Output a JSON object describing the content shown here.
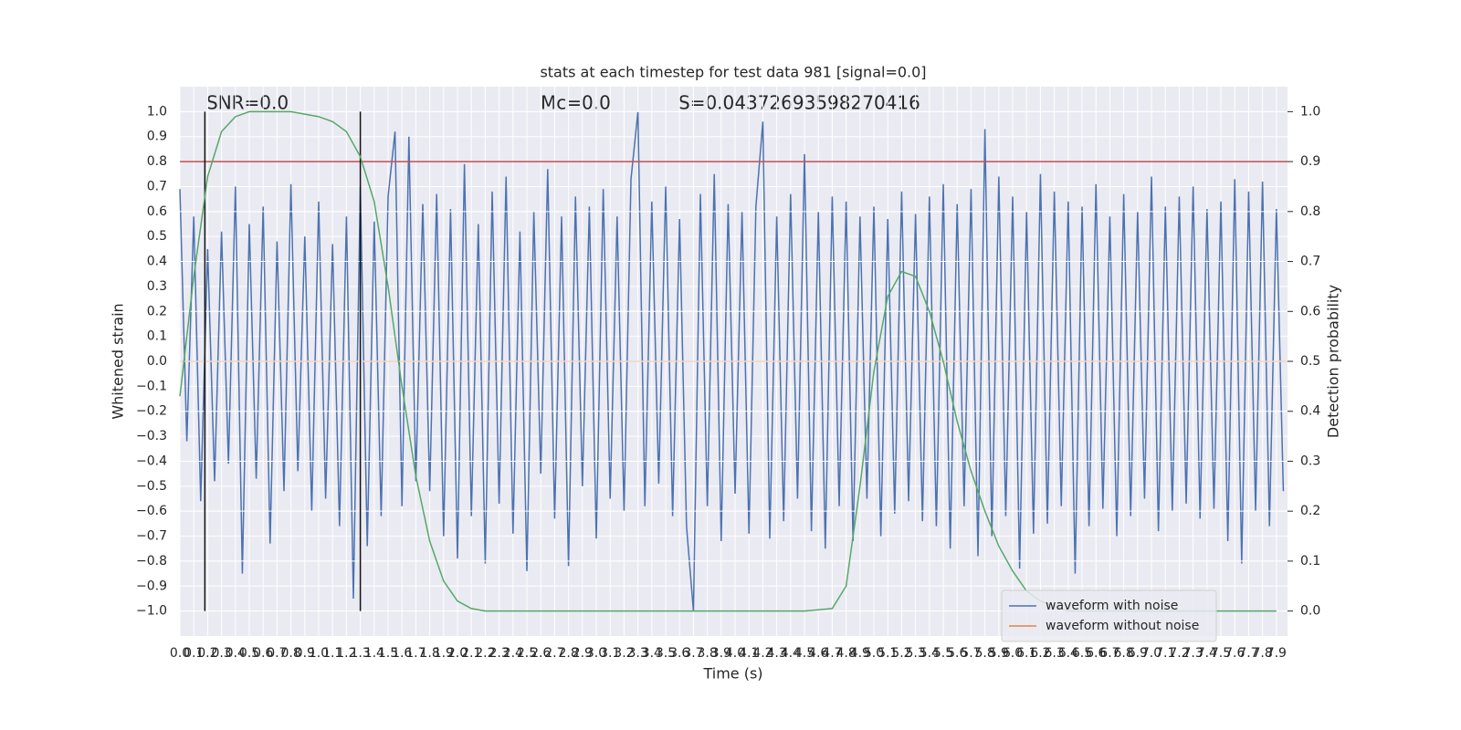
{
  "chart_data": {
    "type": "line",
    "title": "stats at each timestep for test data 981 [signal=0.0]",
    "x_label": "Time (s)",
    "y_label": "Whitened strain",
    "y2_label": "Detection probability",
    "annotations": [
      "SNR=0.0",
      "Mc=0.0",
      "S=0.04372693598270416"
    ],
    "grid": true,
    "legend": "lower right",
    "xlim": [
      0,
      7.98
    ],
    "ylim": [
      -1.1,
      1.1
    ],
    "y2lim": [
      -0.05,
      1.05
    ],
    "xticks": [
      {
        "value": 0,
        "label": "0.0"
      },
      {
        "value": 0.1,
        "label": "0.1"
      },
      {
        "value": 0.2,
        "label": "0.2"
      },
      {
        "value": 0.3,
        "label": "0.3"
      },
      {
        "value": 0.4,
        "label": "0.4"
      },
      {
        "value": 0.5,
        "label": "0.5"
      },
      {
        "value": 0.6,
        "label": "0.6"
      },
      {
        "value": 0.7,
        "label": "0.7"
      },
      {
        "value": 0.8,
        "label": "0.8"
      },
      {
        "value": 0.9,
        "label": "0.9"
      },
      {
        "value": 1,
        "label": "1.0"
      },
      {
        "value": 1.1,
        "label": "1.1"
      },
      {
        "value": 1.2,
        "label": "1.2"
      },
      {
        "value": 1.3,
        "label": "1.3"
      },
      {
        "value": 1.4,
        "label": "1.4"
      },
      {
        "value": 1.5,
        "label": "1.5"
      },
      {
        "value": 1.6,
        "label": "1.6"
      },
      {
        "value": 1.7,
        "label": "1.7"
      },
      {
        "value": 1.8,
        "label": "1.8"
      },
      {
        "value": 1.9,
        "label": "1.9"
      },
      {
        "value": 2,
        "label": "2.0"
      },
      {
        "value": 2.1,
        "label": "2.1"
      },
      {
        "value": 2.2,
        "label": "2.2"
      },
      {
        "value": 2.3,
        "label": "2.3"
      },
      {
        "value": 2.4,
        "label": "2.4"
      },
      {
        "value": 2.5,
        "label": "2.5"
      },
      {
        "value": 2.6,
        "label": "2.6"
      },
      {
        "value": 2.7,
        "label": "2.7"
      },
      {
        "value": 2.8,
        "label": "2.8"
      },
      {
        "value": 2.9,
        "label": "2.9"
      },
      {
        "value": 3,
        "label": "3.0"
      },
      {
        "value": 3.1,
        "label": "3.1"
      },
      {
        "value": 3.2,
        "label": "3.2"
      },
      {
        "value": 3.3,
        "label": "3.3"
      },
      {
        "value": 3.4,
        "label": "3.4"
      },
      {
        "value": 3.5,
        "label": "3.5"
      },
      {
        "value": 3.6,
        "label": "3.6"
      },
      {
        "value": 3.7,
        "label": "3.7"
      },
      {
        "value": 3.8,
        "label": "3.8"
      },
      {
        "value": 3.9,
        "label": "3.9"
      },
      {
        "value": 4,
        "label": "4.0"
      },
      {
        "value": 4.1,
        "label": "4.1"
      },
      {
        "value": 4.2,
        "label": "4.2"
      },
      {
        "value": 4.3,
        "label": "4.3"
      },
      {
        "value": 4.4,
        "label": "4.4"
      },
      {
        "value": 4.5,
        "label": "4.5"
      },
      {
        "value": 4.6,
        "label": "4.6"
      },
      {
        "value": 4.7,
        "label": "4.7"
      },
      {
        "value": 4.8,
        "label": "4.8"
      },
      {
        "value": 4.9,
        "label": "4.9"
      },
      {
        "value": 5,
        "label": "5.0"
      },
      {
        "value": 5.1,
        "label": "5.1"
      },
      {
        "value": 5.2,
        "label": "5.2"
      },
      {
        "value": 5.3,
        "label": "5.3"
      },
      {
        "value": 5.4,
        "label": "5.4"
      },
      {
        "value": 5.5,
        "label": "5.5"
      },
      {
        "value": 5.6,
        "label": "5.6"
      },
      {
        "value": 5.7,
        "label": "5.7"
      },
      {
        "value": 5.8,
        "label": "5.8"
      },
      {
        "value": 5.9,
        "label": "5.9"
      },
      {
        "value": 6,
        "label": "6.0"
      },
      {
        "value": 6.1,
        "label": "6.1"
      },
      {
        "value": 6.2,
        "label": "6.2"
      },
      {
        "value": 6.3,
        "label": "6.3"
      },
      {
        "value": 6.4,
        "label": "6.4"
      },
      {
        "value": 6.5,
        "label": "6.5"
      },
      {
        "value": 6.6,
        "label": "6.6"
      },
      {
        "value": 6.7,
        "label": "6.7"
      },
      {
        "value": 6.8,
        "label": "6.8"
      },
      {
        "value": 6.9,
        "label": "6.9"
      },
      {
        "value": 7,
        "label": "7.0"
      },
      {
        "value": 7.1,
        "label": "7.1"
      },
      {
        "value": 7.2,
        "label": "7.2"
      },
      {
        "value": 7.3,
        "label": "7.3"
      },
      {
        "value": 7.4,
        "label": "7.4"
      },
      {
        "value": 7.5,
        "label": "7.5"
      },
      {
        "value": 7.6,
        "label": "7.6"
      },
      {
        "value": 7.7,
        "label": "7.7"
      },
      {
        "value": 7.8,
        "label": "7.8"
      },
      {
        "value": 7.9,
        "label": "7.9"
      }
    ],
    "yticks": [
      {
        "value": -1,
        "label": "−1.0"
      },
      {
        "value": -0.9,
        "label": "−0.9"
      },
      {
        "value": -0.8,
        "label": "−0.8"
      },
      {
        "value": -0.7,
        "label": "−0.7"
      },
      {
        "value": -0.6,
        "label": "−0.6"
      },
      {
        "value": -0.5,
        "label": "−0.5"
      },
      {
        "value": -0.4,
        "label": "−0.4"
      },
      {
        "value": -0.3,
        "label": "−0.3"
      },
      {
        "value": -0.2,
        "label": "−0.2"
      },
      {
        "value": -0.1,
        "label": "−0.1"
      },
      {
        "value": 0,
        "label": "0.0"
      },
      {
        "value": 0.1,
        "label": "0.1"
      },
      {
        "value": 0.2,
        "label": "0.2"
      },
      {
        "value": 0.3,
        "label": "0.3"
      },
      {
        "value": 0.4,
        "label": "0.4"
      },
      {
        "value": 0.5,
        "label": "0.5"
      },
      {
        "value": 0.6,
        "label": "0.6"
      },
      {
        "value": 0.7,
        "label": "0.7"
      },
      {
        "value": 0.8,
        "label": "0.8"
      },
      {
        "value": 0.9,
        "label": "0.9"
      },
      {
        "value": 1,
        "label": "1.0"
      }
    ],
    "y2ticks": [
      {
        "value": 0,
        "label": "0.0"
      },
      {
        "value": 0.1,
        "label": "0.1"
      },
      {
        "value": 0.2,
        "label": "0.2"
      },
      {
        "value": 0.3,
        "label": "0.3"
      },
      {
        "value": 0.4,
        "label": "0.4"
      },
      {
        "value": 0.5,
        "label": "0.5"
      },
      {
        "value": 0.6,
        "label": "0.6"
      },
      {
        "value": 0.7,
        "label": "0.7"
      },
      {
        "value": 0.8,
        "label": "0.8"
      },
      {
        "value": 0.9,
        "label": "0.9"
      },
      {
        "value": 1,
        "label": "1.0"
      }
    ],
    "hline": {
      "value": 0.8,
      "color": "#c44e52"
    },
    "vlines": {
      "x": [
        0.18,
        1.3
      ],
      "ymin": -1.0,
      "ymax": 1.0,
      "color": "#111111"
    },
    "series": [
      {
        "name": "waveform with noise",
        "color": "#4c72b0",
        "x": [
          0,
          0.05,
          0.1,
          0.15,
          0.2,
          0.25,
          0.3,
          0.35,
          0.4,
          0.45,
          0.5,
          0.55,
          0.6,
          0.65,
          0.7,
          0.75,
          0.8,
          0.85,
          0.9,
          0.95,
          1,
          1.05,
          1.1,
          1.15,
          1.2,
          1.25,
          1.3,
          1.35,
          1.4,
          1.45,
          1.5,
          1.55,
          1.6,
          1.65,
          1.7,
          1.75,
          1.8,
          1.85,
          1.9,
          1.95,
          2,
          2.05,
          2.1,
          2.15,
          2.2,
          2.25,
          2.3,
          2.35,
          2.4,
          2.45,
          2.5,
          2.55,
          2.6,
          2.65,
          2.7,
          2.75,
          2.8,
          2.85,
          2.9,
          2.95,
          3,
          3.05,
          3.1,
          3.15,
          3.2,
          3.25,
          3.3,
          3.35,
          3.4,
          3.45,
          3.5,
          3.55,
          3.6,
          3.65,
          3.7,
          3.75,
          3.8,
          3.85,
          3.9,
          3.95,
          4,
          4.05,
          4.1,
          4.15,
          4.2,
          4.25,
          4.3,
          4.35,
          4.4,
          4.45,
          4.5,
          4.55,
          4.6,
          4.65,
          4.7,
          4.75,
          4.8,
          4.85,
          4.9,
          4.95,
          5,
          5.05,
          5.1,
          5.15,
          5.2,
          5.25,
          5.3,
          5.35,
          5.4,
          5.45,
          5.5,
          5.55,
          5.6,
          5.65,
          5.7,
          5.75,
          5.8,
          5.85,
          5.9,
          5.95,
          6,
          6.05,
          6.1,
          6.15,
          6.2,
          6.25,
          6.3,
          6.35,
          6.4,
          6.45,
          6.5,
          6.55,
          6.6,
          6.65,
          6.7,
          6.75,
          6.8,
          6.85,
          6.9,
          6.95,
          7,
          7.05,
          7.1,
          7.15,
          7.2,
          7.25,
          7.3,
          7.35,
          7.4,
          7.45,
          7.5,
          7.55,
          7.6,
          7.65,
          7.7,
          7.75,
          7.8,
          7.85,
          7.9,
          7.95
        ],
        "values": [
          0.69,
          -0.32,
          0.58,
          -0.56,
          0.45,
          -0.48,
          0.52,
          -0.41,
          0.7,
          -0.85,
          0.55,
          -0.47,
          0.62,
          -0.73,
          0.48,
          -0.52,
          0.71,
          -0.44,
          0.5,
          -0.6,
          0.64,
          -0.55,
          0.47,
          -0.66,
          0.58,
          -0.95,
          0.7,
          -0.74,
          0.56,
          -0.62,
          0.66,
          0.92,
          -0.58,
          0.9,
          -0.48,
          0.63,
          -0.52,
          0.67,
          -0.7,
          0.61,
          -0.79,
          0.79,
          -0.62,
          0.55,
          -0.81,
          0.68,
          -0.57,
          0.74,
          -0.69,
          0.52,
          -0.84,
          0.6,
          -0.45,
          0.77,
          -0.63,
          0.58,
          -0.82,
          0.66,
          -0.5,
          0.62,
          -0.71,
          0.69,
          -0.55,
          0.58,
          -0.6,
          0.73,
          1.0,
          -0.58,
          0.64,
          -0.49,
          0.7,
          -0.62,
          0.57,
          -0.66,
          -1.0,
          0.67,
          -0.58,
          0.75,
          -0.72,
          0.63,
          -0.53,
          0.6,
          -0.69,
          0.62,
          0.96,
          -0.71,
          0.58,
          -0.64,
          0.67,
          -0.55,
          0.83,
          -0.68,
          0.6,
          -0.75,
          0.66,
          -0.58,
          0.64,
          -0.72,
          0.58,
          -0.55,
          0.62,
          -0.7,
          0.57,
          -0.61,
          0.68,
          -0.56,
          0.59,
          -0.64,
          0.66,
          -0.66,
          0.71,
          -0.75,
          0.63,
          -0.58,
          0.69,
          -0.78,
          0.93,
          -0.7,
          0.74,
          -0.62,
          0.66,
          -0.83,
          0.6,
          -0.69,
          0.75,
          -0.65,
          0.68,
          -0.58,
          0.64,
          -0.85,
          0.62,
          -0.66,
          0.71,
          -0.59,
          0.58,
          -0.7,
          0.67,
          -0.62,
          0.6,
          -0.55,
          0.74,
          -0.68,
          0.62,
          -0.6,
          0.66,
          -0.57,
          0.7,
          -0.63,
          0.61,
          -0.59,
          0.64,
          -0.72,
          0.73,
          -0.81,
          0.68,
          -0.6,
          0.72,
          -0.66,
          0.61,
          -0.52
        ]
      },
      {
        "name": "waveform without noise",
        "color": "#dd8452",
        "x": [
          0,
          7.98
        ],
        "values": [
          0,
          0
        ]
      },
      {
        "color": "#55a868",
        "axis": "y2",
        "x": [
          0,
          0.1,
          0.2,
          0.3,
          0.4,
          0.5,
          0.6,
          0.8,
          1.0,
          1.1,
          1.2,
          1.3,
          1.4,
          1.5,
          1.6,
          1.7,
          1.8,
          1.9,
          2.0,
          2.1,
          2.2,
          2.5,
          3.0,
          3.5,
          4.0,
          4.5,
          4.7,
          4.8,
          4.9,
          5.0,
          5.1,
          5.2,
          5.3,
          5.4,
          5.5,
          5.6,
          5.7,
          5.8,
          5.9,
          6.0,
          6.1,
          6.2,
          6.3,
          6.4,
          6.5,
          7.0,
          7.5,
          7.9
        ],
        "values": [
          0.43,
          0.67,
          0.87,
          0.96,
          0.99,
          1.0,
          1.0,
          1.0,
          0.99,
          0.98,
          0.96,
          0.91,
          0.82,
          0.65,
          0.45,
          0.27,
          0.14,
          0.06,
          0.02,
          0.005,
          0.0,
          0.0,
          0.0,
          0.0,
          0.0,
          0.0,
          0.005,
          0.05,
          0.25,
          0.48,
          0.63,
          0.68,
          0.67,
          0.6,
          0.5,
          0.38,
          0.28,
          0.2,
          0.13,
          0.08,
          0.04,
          0.02,
          0.01,
          0.0,
          0.0,
          0.0,
          0.0,
          0.0
        ]
      }
    ]
  }
}
